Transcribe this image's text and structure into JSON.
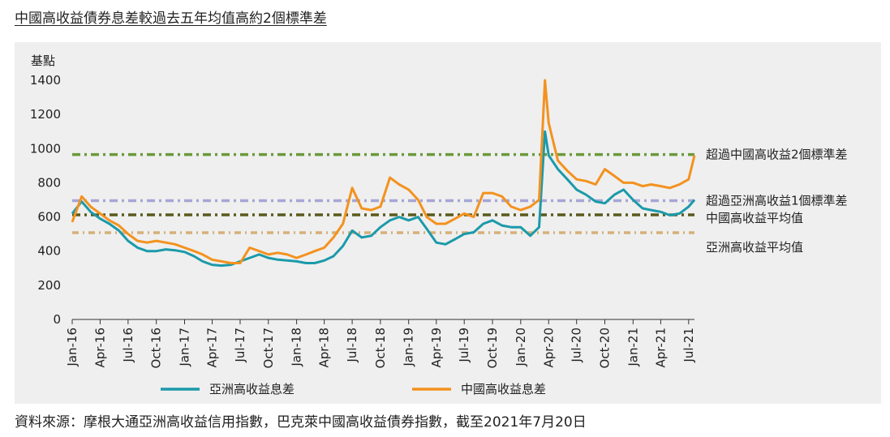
{
  "title": "中國高收益債券息差較過去五年均值高約2個標準差",
  "source": "資料來源：摩根大通亞洲高收益信用指數，巴克萊中國高收益債券指數，截至2021年7月20日",
  "chart_data": {
    "type": "line",
    "ylabel": "基點",
    "ylim": [
      0,
      1400
    ],
    "yticks": [
      "0",
      "200",
      "400",
      "600",
      "800",
      "1000",
      "1200",
      "1400"
    ],
    "xticks": [
      "Jan-16",
      "Apr-16",
      "Jul-16",
      "Oct-16",
      "Jan-17",
      "Apr-17",
      "Jul-17",
      "Oct-17",
      "Jan-18",
      "Apr-18",
      "Jul-18",
      "Oct-18",
      "Jan-19",
      "Apr-19",
      "Jul-19",
      "Oct-19",
      "Jan-20",
      "Apr-20",
      "Jul-20",
      "Oct-20",
      "Jan-21",
      "Apr-21",
      "Jul-21"
    ],
    "x_start": "Jan-16",
    "x_end": "Jul-21",
    "series": [
      {
        "name": "亞洲高收益息差",
        "color": "#1b9aaa",
        "x": [
          "2016-01-01",
          "2016-02-01",
          "2016-03-01",
          "2016-04-01",
          "2016-05-01",
          "2016-06-01",
          "2016-07-01",
          "2016-08-01",
          "2016-09-01",
          "2016-10-01",
          "2016-11-01",
          "2016-12-01",
          "2017-01-01",
          "2017-02-01",
          "2017-03-01",
          "2017-04-01",
          "2017-05-01",
          "2017-06-01",
          "2017-07-01",
          "2017-08-01",
          "2017-09-01",
          "2017-10-01",
          "2017-11-01",
          "2017-12-01",
          "2018-01-01",
          "2018-02-01",
          "2018-03-01",
          "2018-04-01",
          "2018-05-01",
          "2018-06-01",
          "2018-07-01",
          "2018-08-01",
          "2018-09-01",
          "2018-10-01",
          "2018-11-01",
          "2018-12-01",
          "2019-01-01",
          "2019-02-01",
          "2019-03-01",
          "2019-04-01",
          "2019-05-01",
          "2019-06-01",
          "2019-07-01",
          "2019-08-01",
          "2019-09-01",
          "2019-10-01",
          "2019-11-01",
          "2019-12-01",
          "2020-01-01",
          "2020-02-01",
          "2020-03-01",
          "2020-03-20",
          "2020-04-01",
          "2020-05-01",
          "2020-06-01",
          "2020-07-01",
          "2020-08-01",
          "2020-09-01",
          "2020-10-01",
          "2020-11-01",
          "2020-12-01",
          "2021-01-01",
          "2021-02-01",
          "2021-03-01",
          "2021-04-01",
          "2021-05-01",
          "2021-06-01",
          "2021-07-01",
          "2021-07-20"
        ],
        "values": [
          620,
          690,
          630,
          590,
          560,
          520,
          460,
          420,
          400,
          400,
          410,
          405,
          395,
          370,
          340,
          320,
          315,
          320,
          340,
          360,
          380,
          360,
          350,
          345,
          340,
          330,
          330,
          345,
          370,
          430,
          520,
          480,
          490,
          540,
          580,
          600,
          580,
          600,
          530,
          450,
          440,
          470,
          500,
          510,
          560,
          580,
          550,
          540,
          540,
          490,
          540,
          1100,
          960,
          880,
          820,
          760,
          730,
          690,
          680,
          730,
          760,
          700,
          650,
          640,
          630,
          610,
          620,
          660,
          700
        ]
      },
      {
        "name": "中國高收益息差",
        "color": "#f3921f",
        "x": [
          "2016-01-01",
          "2016-02-01",
          "2016-03-01",
          "2016-04-01",
          "2016-05-01",
          "2016-06-01",
          "2016-07-01",
          "2016-08-01",
          "2016-09-01",
          "2016-10-01",
          "2016-11-01",
          "2016-12-01",
          "2017-01-01",
          "2017-02-01",
          "2017-03-01",
          "2017-04-01",
          "2017-05-01",
          "2017-06-01",
          "2017-07-01",
          "2017-08-01",
          "2017-09-01",
          "2017-10-01",
          "2017-11-01",
          "2017-12-01",
          "2018-01-01",
          "2018-02-01",
          "2018-03-01",
          "2018-04-01",
          "2018-05-01",
          "2018-06-01",
          "2018-07-01",
          "2018-08-01",
          "2018-09-01",
          "2018-10-01",
          "2018-11-01",
          "2018-12-01",
          "2019-01-01",
          "2019-02-01",
          "2019-03-01",
          "2019-04-01",
          "2019-05-01",
          "2019-06-01",
          "2019-07-01",
          "2019-08-01",
          "2019-09-01",
          "2019-10-01",
          "2019-11-01",
          "2019-12-01",
          "2020-01-01",
          "2020-02-01",
          "2020-03-01",
          "2020-03-20",
          "2020-04-01",
          "2020-05-01",
          "2020-06-01",
          "2020-07-01",
          "2020-08-01",
          "2020-09-01",
          "2020-10-01",
          "2020-11-01",
          "2020-12-01",
          "2021-01-01",
          "2021-02-01",
          "2021-03-01",
          "2021-04-01",
          "2021-05-01",
          "2021-06-01",
          "2021-07-01",
          "2021-07-20"
        ],
        "values": [
          570,
          720,
          660,
          620,
          580,
          550,
          500,
          460,
          450,
          460,
          450,
          440,
          420,
          400,
          380,
          350,
          340,
          330,
          330,
          420,
          400,
          380,
          390,
          380,
          360,
          380,
          400,
          420,
          480,
          560,
          770,
          650,
          640,
          660,
          830,
          790,
          760,
          700,
          600,
          560,
          560,
          590,
          620,
          600,
          740,
          740,
          720,
          660,
          640,
          660,
          700,
          1400,
          1150,
          930,
          870,
          820,
          810,
          790,
          880,
          840,
          800,
          800,
          780,
          790,
          780,
          770,
          790,
          820,
          960
        ]
      }
    ],
    "reference_lines": [
      {
        "label": "超過中國高收益2個標準差",
        "value": 965,
        "color": "#6a9a3a"
      },
      {
        "label": "超過亞洲高收益1個標準差",
        "value": 695,
        "color": "#a7a6d6"
      },
      {
        "label": "中國高收益平均值",
        "value": 612,
        "color": "#5a5a1e"
      },
      {
        "label": "亞洲高收益平均值",
        "value": 508,
        "color": "#d6b07a"
      }
    ],
    "grid": false,
    "legend_position": "bottom"
  }
}
